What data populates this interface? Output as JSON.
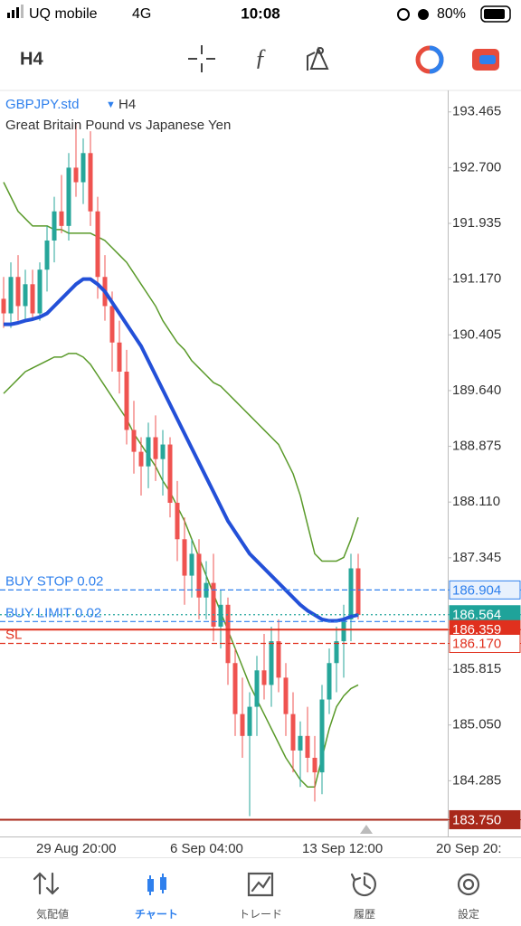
{
  "status_bar": {
    "carrier": "UQ mobile",
    "network": "4G",
    "time": "10:08",
    "battery": "80%"
  },
  "toolbar": {
    "timeframe": "H4"
  },
  "chart": {
    "symbol": "GBPJPY.std",
    "timeframe": "H4",
    "description": "Great Britain Pound vs Japanese Yen",
    "ylim": [
      183.52,
      193.76
    ],
    "yticks": [
      193.465,
      {
        "value": 192.7,
        "label": "192.700"
      },
      191.935,
      {
        "value": 191.17,
        "label": "191.170"
      },
      190.405,
      {
        "value": 189.64,
        "label": "189.640"
      },
      188.875,
      {
        "value": 188.11,
        "label": "188.110"
      },
      187.345,
      185.815,
      {
        "value": 185.05,
        "label": "185.050"
      },
      184.285
    ],
    "x_labels": [
      "29 Aug 20:00",
      "6 Sep 04:00",
      "13 Sep 12:00",
      "20 Sep 20:"
    ],
    "up_color": "#26a69a",
    "down_color": "#ef5350",
    "open": [
      190.9,
      190.7,
      191.2,
      190.8,
      191.1,
      190.7,
      191.3,
      191.7,
      192.1,
      191.9,
      192.7,
      192.5,
      192.9,
      192.1,
      191.2,
      190.8,
      190.3,
      189.9,
      189.1,
      188.8,
      188.6,
      189.0,
      188.7,
      188.9,
      188.1,
      187.6,
      187.1,
      187.4,
      186.8,
      187.0,
      186.4,
      186.7,
      185.9,
      185.2,
      184.9,
      185.3,
      185.8,
      185.6,
      186.2,
      185.7,
      185.2,
      184.7,
      184.9,
      184.6,
      184.4,
      185.4,
      185.9,
      186.2,
      186.5,
      187.2
    ],
    "high": [
      191.2,
      191.4,
      191.5,
      191.3,
      191.3,
      191.4,
      191.9,
      192.3,
      192.6,
      192.9,
      193.3,
      193.1,
      193.2,
      192.3,
      191.5,
      191.0,
      190.6,
      190.2,
      189.5,
      189.0,
      189.2,
      189.3,
      189.1,
      189.0,
      188.4,
      187.9,
      187.6,
      187.6,
      187.3,
      187.4,
      186.9,
      186.8,
      186.1,
      185.7,
      185.5,
      186.0,
      186.3,
      186.4,
      186.5,
      185.9,
      185.5,
      185.1,
      185.3,
      184.9,
      185.6,
      186.1,
      186.4,
      186.7,
      187.4,
      187.4
    ],
    "low": [
      190.5,
      190.5,
      190.6,
      190.6,
      190.6,
      190.6,
      191.0,
      191.4,
      191.8,
      191.7,
      192.3,
      192.2,
      191.9,
      190.9,
      190.6,
      189.9,
      189.6,
      188.9,
      188.5,
      188.2,
      188.3,
      188.4,
      188.2,
      187.9,
      187.3,
      186.7,
      186.8,
      186.5,
      186.5,
      186.2,
      186.1,
      185.6,
      184.9,
      184.6,
      183.8,
      184.9,
      185.4,
      185.3,
      185.5,
      184.9,
      184.4,
      184.2,
      184.4,
      184.0,
      184.1,
      185.2,
      185.5,
      185.7,
      186.2,
      186.5
    ],
    "close": [
      190.7,
      191.2,
      190.8,
      191.1,
      190.7,
      191.3,
      191.7,
      192.1,
      191.9,
      192.7,
      192.5,
      192.9,
      192.1,
      191.2,
      190.8,
      190.3,
      189.9,
      189.1,
      188.8,
      188.6,
      189.0,
      188.7,
      188.9,
      188.1,
      187.6,
      187.1,
      187.4,
      186.8,
      187.0,
      186.4,
      186.7,
      185.9,
      185.2,
      184.9,
      185.3,
      185.8,
      185.6,
      186.2,
      185.7,
      185.2,
      184.7,
      184.9,
      184.6,
      184.4,
      185.4,
      185.9,
      186.2,
      186.5,
      187.2,
      186.56
    ],
    "ma": {
      "color": "#2350d8",
      "values": [
        190.55,
        190.55,
        190.57,
        190.6,
        190.62,
        190.65,
        190.7,
        190.8,
        190.9,
        191.0,
        191.1,
        191.17,
        191.17,
        191.1,
        191.0,
        190.85,
        190.7,
        190.55,
        190.4,
        190.25,
        190.05,
        189.85,
        189.65,
        189.45,
        189.25,
        189.05,
        188.85,
        188.65,
        188.45,
        188.25,
        188.05,
        187.85,
        187.7,
        187.55,
        187.4,
        187.3,
        187.2,
        187.1,
        187.0,
        186.9,
        186.8,
        186.7,
        186.62,
        186.56,
        186.5,
        186.48,
        186.48,
        186.5,
        186.54,
        186.56
      ]
    },
    "bands": {
      "color": "#5a9a2a",
      "upper": [
        192.5,
        192.3,
        192.1,
        192.0,
        191.9,
        191.9,
        191.9,
        191.85,
        191.85,
        191.8,
        191.8,
        191.8,
        191.8,
        191.75,
        191.7,
        191.6,
        191.5,
        191.4,
        191.25,
        191.1,
        190.95,
        190.8,
        190.6,
        190.45,
        190.3,
        190.2,
        190.05,
        189.95,
        189.85,
        189.75,
        189.7,
        189.6,
        189.5,
        189.4,
        189.3,
        189.2,
        189.1,
        189.0,
        188.9,
        188.7,
        188.5,
        188.2,
        187.8,
        187.4,
        187.3,
        187.3,
        187.3,
        187.35,
        187.6,
        187.9
      ],
      "lower": [
        189.6,
        189.7,
        189.8,
        189.9,
        189.95,
        190.0,
        190.05,
        190.1,
        190.1,
        190.15,
        190.15,
        190.1,
        190.0,
        189.85,
        189.7,
        189.55,
        189.4,
        189.25,
        189.05,
        188.9,
        188.75,
        188.6,
        188.4,
        188.25,
        188.05,
        187.85,
        187.6,
        187.35,
        187.1,
        186.85,
        186.6,
        186.35,
        186.1,
        185.85,
        185.6,
        185.4,
        185.2,
        185.0,
        184.8,
        184.6,
        184.45,
        184.3,
        184.2,
        184.2,
        184.6,
        185.0,
        185.3,
        185.45,
        185.55,
        185.6
      ]
    },
    "price_lines": [
      {
        "name": "BUY STOP 0.02",
        "price": 186.904,
        "color": "#2f80ed",
        "style": "dashed",
        "tag_fill": "#e8f1fd"
      },
      {
        "price": 186.564,
        "color": "#1fa39a",
        "style": "dotted",
        "tag_fill": "#1fa39a"
      },
      {
        "name": "BUY LIMIT 0.02",
        "price": 186.47,
        "color": "#2f80ed",
        "style": "dashed"
      },
      {
        "price": 186.359,
        "color": "#e0301e",
        "style": "solid",
        "tag_fill": "#e0301e"
      },
      {
        "name": "SL",
        "price": {
          "value": 186.17,
          "label": "186.170"
        },
        "color": "#e0301e",
        "style": "dashed",
        "tag_fill": "#ffffff"
      },
      {
        "price": {
          "value": 183.75,
          "label": "183.750"
        },
        "color": "#a8281a",
        "style": "solid",
        "tag_fill": "#a8281a"
      }
    ]
  },
  "nav": {
    "active": 1,
    "items": [
      "気配値",
      "チャート",
      "トレード",
      "履歴",
      "設定"
    ]
  }
}
